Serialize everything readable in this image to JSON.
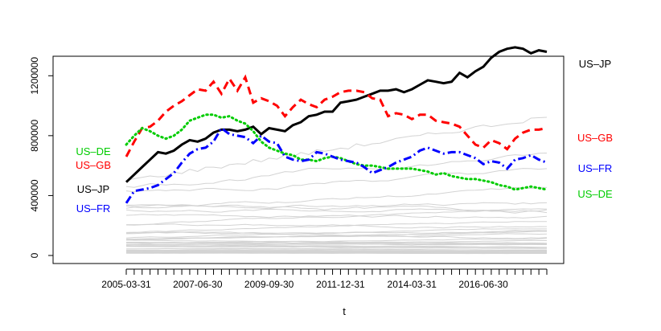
{
  "chart_data": {
    "type": "line",
    "title": "",
    "xlabel": "t",
    "ylabel": "",
    "x_start": "2005-03-31",
    "x_end": "2018-12-31",
    "x_period": "quarterly",
    "x_tick_labels": [
      "2005-03-31",
      "2007-06-30",
      "2009-09-30",
      "2011-12-31",
      "2014-03-31",
      "2016-06-30"
    ],
    "ylim": [
      0,
      1400000
    ],
    "y_ticks": [
      0,
      400000,
      800000,
      1200000
    ],
    "y_tick_labels": [
      "0",
      "400000",
      "800000",
      "1200000"
    ],
    "grid": false,
    "legend": "none",
    "background_series_color": "#d3d3d3",
    "highlighted_series": [
      {
        "name": "US–JP",
        "color": "#000000",
        "style": "solid",
        "values": [
          490000,
          540000,
          590000,
          640000,
          690000,
          680000,
          700000,
          740000,
          770000,
          760000,
          780000,
          820000,
          840000,
          840000,
          830000,
          840000,
          860000,
          810000,
          850000,
          840000,
          830000,
          870000,
          890000,
          930000,
          940000,
          960000,
          960000,
          1020000,
          1030000,
          1040000,
          1060000,
          1080000,
          1100000,
          1100000,
          1110000,
          1090000,
          1110000,
          1140000,
          1170000,
          1160000,
          1150000,
          1160000,
          1220000,
          1190000,
          1230000,
          1260000,
          1320000,
          1360000,
          1380000,
          1390000,
          1380000,
          1350000,
          1370000,
          1360000
        ]
      },
      {
        "name": "US–GB",
        "color": "#ff0000",
        "style": "dashed",
        "values": [
          660000,
          760000,
          850000,
          860000,
          900000,
          960000,
          1000000,
          1030000,
          1070000,
          1110000,
          1100000,
          1160000,
          1080000,
          1180000,
          1100000,
          1190000,
          1020000,
          1050000,
          1030000,
          1000000,
          930000,
          990000,
          1040000,
          1010000,
          990000,
          1040000,
          1060000,
          1090000,
          1100000,
          1100000,
          1090000,
          1050000,
          1040000,
          930000,
          950000,
          940000,
          910000,
          940000,
          940000,
          900000,
          890000,
          880000,
          860000,
          800000,
          740000,
          720000,
          770000,
          750000,
          710000,
          780000,
          820000,
          840000,
          840000,
          850000
        ]
      },
      {
        "name": "US–DE",
        "color": "#00cc00",
        "style": "dotted",
        "values": [
          740000,
          800000,
          850000,
          830000,
          800000,
          780000,
          800000,
          840000,
          900000,
          920000,
          940000,
          940000,
          920000,
          930000,
          900000,
          880000,
          830000,
          760000,
          720000,
          700000,
          680000,
          670000,
          640000,
          640000,
          630000,
          650000,
          660000,
          650000,
          630000,
          610000,
          600000,
          600000,
          590000,
          580000,
          580000,
          580000,
          580000,
          570000,
          560000,
          540000,
          550000,
          530000,
          520000,
          510000,
          510000,
          500000,
          490000,
          470000,
          460000,
          440000,
          450000,
          460000,
          450000,
          440000
        ]
      },
      {
        "name": "US–FR",
        "color": "#0000ff",
        "style": "dotdash",
        "values": [
          350000,
          430000,
          440000,
          450000,
          470000,
          510000,
          550000,
          620000,
          680000,
          710000,
          720000,
          760000,
          850000,
          810000,
          800000,
          790000,
          750000,
          800000,
          760000,
          750000,
          660000,
          640000,
          630000,
          640000,
          690000,
          680000,
          660000,
          640000,
          630000,
          620000,
          590000,
          550000,
          570000,
          590000,
          620000,
          640000,
          660000,
          700000,
          720000,
          700000,
          680000,
          690000,
          690000,
          670000,
          650000,
          610000,
          630000,
          620000,
          580000,
          640000,
          650000,
          670000,
          640000,
          620000
        ]
      }
    ],
    "series_labels_left": [
      "US–DE",
      "US–GB",
      "US–JP",
      "US–FR"
    ],
    "series_labels_right": [
      "US–JP",
      "US–GB",
      "US–FR",
      "US–DE"
    ]
  }
}
